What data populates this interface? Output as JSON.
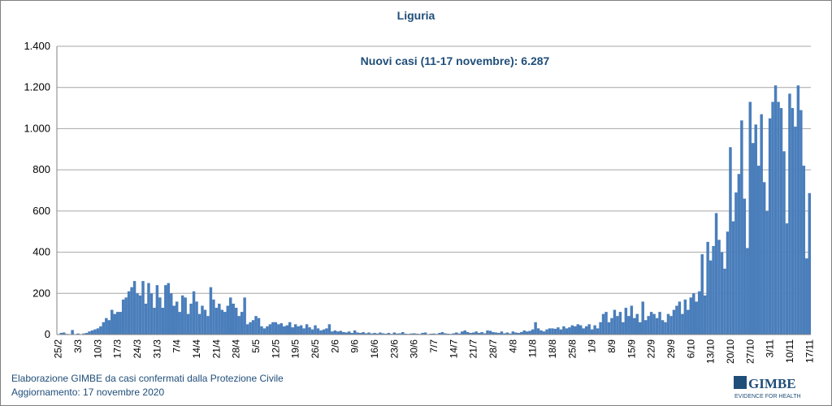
{
  "chart_data": {
    "type": "bar",
    "title": "Liguria",
    "annotation": "Nuovi casi (11-17 novembre): 6.287",
    "footer": [
      "Elaborazione GIMBE da casi confermati dalla Protezione Civile",
      "Aggiornamento: 17 novembre 2020"
    ],
    "logo": {
      "name": "GIMBE",
      "tagline": "EVIDENCE FOR HEALTH"
    },
    "color": "#4a7ebb",
    "grid": true,
    "ylim": [
      0,
      1400
    ],
    "yticks": [
      0,
      200,
      400,
      600,
      800,
      {
        "value": 1000,
        "label": "1.000"
      },
      {
        "value": 1200,
        "label": "1.200"
      },
      {
        "value": 1400,
        "label": "1.400"
      }
    ],
    "categories": [
      "25/2",
      null,
      null,
      null,
      null,
      null,
      null,
      "3/3",
      null,
      null,
      null,
      null,
      null,
      null,
      "10/3",
      null,
      null,
      null,
      null,
      null,
      null,
      "17/3",
      null,
      null,
      null,
      null,
      null,
      null,
      "24/3",
      null,
      null,
      null,
      null,
      null,
      null,
      "31/3",
      null,
      null,
      null,
      null,
      null,
      null,
      "7/4",
      null,
      null,
      null,
      null,
      null,
      null,
      "14/4",
      null,
      null,
      null,
      null,
      null,
      null,
      "21/4",
      null,
      null,
      null,
      null,
      null,
      null,
      "28/4",
      null,
      null,
      null,
      null,
      null,
      null,
      "5/5",
      null,
      null,
      null,
      null,
      null,
      null,
      "12/5",
      null,
      null,
      null,
      null,
      null,
      null,
      "19/5",
      null,
      null,
      null,
      null,
      null,
      null,
      "26/5",
      null,
      null,
      null,
      null,
      null,
      null,
      "2/6",
      null,
      null,
      null,
      null,
      null,
      null,
      "9/6",
      null,
      null,
      null,
      null,
      null,
      null,
      "16/6",
      null,
      null,
      null,
      null,
      null,
      null,
      "23/6",
      null,
      null,
      null,
      null,
      null,
      null,
      "30/6",
      null,
      null,
      null,
      null,
      null,
      null,
      "7/7",
      null,
      null,
      null,
      null,
      null,
      null,
      "14/7",
      null,
      null,
      null,
      null,
      null,
      null,
      "21/7",
      null,
      null,
      null,
      null,
      null,
      null,
      "28/7",
      null,
      null,
      null,
      null,
      null,
      null,
      "4/8",
      null,
      null,
      null,
      null,
      null,
      null,
      "11/8",
      null,
      null,
      null,
      null,
      null,
      null,
      "18/8",
      null,
      null,
      null,
      null,
      null,
      null,
      "25/8",
      null,
      null,
      null,
      null,
      null,
      null,
      "1/9",
      null,
      null,
      null,
      null,
      null,
      null,
      "8/9",
      null,
      null,
      null,
      null,
      null,
      null,
      "15/9",
      null,
      null,
      null,
      null,
      null,
      null,
      "22/9",
      null,
      null,
      null,
      null,
      null,
      null,
      "29/9",
      null,
      null,
      null,
      null,
      null,
      null,
      "6/10",
      null,
      null,
      null,
      null,
      null,
      null,
      "13/10",
      null,
      null,
      null,
      null,
      null,
      null,
      "20/10",
      null,
      null,
      null,
      null,
      null,
      null,
      "27/10",
      null,
      null,
      null,
      null,
      null,
      null,
      "3/11",
      null,
      null,
      null,
      null,
      null,
      null,
      "10/11",
      null,
      null,
      null,
      null,
      null,
      null,
      "17/11"
    ],
    "values": [
      0,
      8,
      10,
      3,
      0,
      22,
      0,
      5,
      0,
      5,
      8,
      15,
      20,
      25,
      30,
      40,
      60,
      80,
      70,
      120,
      100,
      110,
      110,
      170,
      180,
      210,
      230,
      260,
      200,
      190,
      260,
      150,
      250,
      200,
      130,
      240,
      180,
      130,
      240,
      250,
      200,
      140,
      160,
      110,
      190,
      180,
      100,
      150,
      210,
      160,
      100,
      140,
      120,
      90,
      230,
      170,
      130,
      150,
      120,
      110,
      140,
      180,
      150,
      130,
      90,
      110,
      180,
      50,
      60,
      70,
      90,
      80,
      40,
      30,
      40,
      50,
      60,
      60,
      50,
      55,
      40,
      45,
      60,
      35,
      50,
      40,
      45,
      30,
      50,
      35,
      25,
      45,
      30,
      20,
      25,
      30,
      50,
      15,
      20,
      15,
      18,
      12,
      10,
      15,
      8,
      20,
      10,
      8,
      12,
      6,
      10,
      5,
      8,
      5,
      10,
      6,
      4,
      8,
      3,
      10,
      5,
      6,
      12,
      4,
      3,
      5,
      6,
      4,
      3,
      8,
      10,
      2,
      4,
      5,
      3,
      8,
      12,
      6,
      4,
      3,
      6,
      10,
      5,
      15,
      20,
      12,
      8,
      10,
      15,
      8,
      12,
      6,
      20,
      18,
      12,
      10,
      8,
      15,
      6,
      10,
      5,
      15,
      10,
      8,
      12,
      20,
      15,
      18,
      25,
      60,
      30,
      20,
      15,
      25,
      30,
      30,
      28,
      35,
      25,
      40,
      30,
      35,
      45,
      40,
      50,
      45,
      30,
      40,
      50,
      25,
      45,
      30,
      60,
      100,
      110,
      60,
      80,
      120,
      90,
      110,
      60,
      130,
      90,
      140,
      80,
      100,
      60,
      160,
      70,
      90,
      110,
      100,
      80,
      110,
      70,
      60,
      100,
      90,
      120,
      140,
      160,
      100,
      170,
      120,
      180,
      200,
      160,
      210,
      390,
      190,
      450,
      360,
      430,
      590,
      460,
      400,
      320,
      500,
      910,
      550,
      690,
      780,
      1040,
      660,
      420,
      1130,
      930,
      1020,
      820,
      1070,
      740,
      600,
      1050,
      1130,
      1210,
      1130,
      1100,
      890,
      540,
      1170,
      1100,
      1010,
      1210,
      1090,
      820,
      370,
      687
    ]
  }
}
